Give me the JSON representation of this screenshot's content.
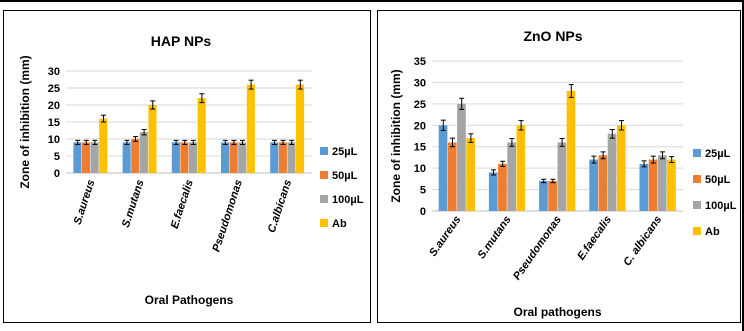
{
  "chart_data": [
    {
      "type": "bar",
      "title": "HAP NPs",
      "xlabel": "Oral Pathogens",
      "ylabel": "Zone of inhibition (mm)",
      "ylim": [
        0,
        30
      ],
      "yticks": [
        0,
        5,
        10,
        15,
        20,
        25,
        30
      ],
      "grid": true,
      "legend_position": "right",
      "categories": [
        "S.aureus",
        "S.mutans",
        "E.faecalis",
        "Pseudomonas",
        "C.albicans"
      ],
      "series": [
        {
          "name": "25µL",
          "color": "#5b9bd5",
          "values": [
            9,
            9,
            9,
            9,
            9
          ],
          "errors": [
            0.6,
            0.6,
            0.6,
            0.6,
            0.6
          ]
        },
        {
          "name": "50µL",
          "color": "#ed7d31",
          "values": [
            9,
            10,
            9,
            9,
            9
          ],
          "errors": [
            0.6,
            0.7,
            0.6,
            0.6,
            0.6
          ]
        },
        {
          "name": "100µL",
          "color": "#a5a5a5",
          "values": [
            9,
            12,
            9,
            9,
            9
          ],
          "errors": [
            0.6,
            0.8,
            0.6,
            0.6,
            0.6
          ]
        },
        {
          "name": "Ab",
          "color": "#ffc000",
          "values": [
            16,
            20,
            22,
            26,
            26
          ],
          "errors": [
            1,
            1.2,
            1.3,
            1.3,
            1.3
          ]
        }
      ]
    },
    {
      "type": "bar",
      "title": "ZnO NPs",
      "xlabel": "Oral pathogens",
      "ylabel": "Zone of inhibition (mm)",
      "ylim": [
        0,
        35
      ],
      "yticks": [
        0,
        5,
        10,
        15,
        20,
        25,
        30,
        35
      ],
      "grid": true,
      "legend_position": "right",
      "categories": [
        "S.aureus",
        "S.mutans",
        "Pseudomonas",
        "E.faecalis",
        "C. albicans"
      ],
      "series": [
        {
          "name": "25µL",
          "color": "#5b9bd5",
          "values": [
            20,
            9,
            7,
            12,
            11
          ],
          "errors": [
            1.2,
            0.6,
            0.4,
            0.8,
            0.7
          ]
        },
        {
          "name": "50µL",
          "color": "#ed7d31",
          "values": [
            16,
            11,
            7,
            13,
            12
          ],
          "errors": [
            1,
            0.6,
            0.4,
            0.8,
            0.8
          ]
        },
        {
          "name": "100µL",
          "color": "#a5a5a5",
          "values": [
            25,
            16,
            16,
            18,
            13
          ],
          "errors": [
            1.3,
            0.9,
            0.9,
            1,
            0.8
          ]
        },
        {
          "name": "Ab",
          "color": "#ffc000",
          "values": [
            17,
            20,
            28,
            20,
            12
          ],
          "errors": [
            1,
            1.1,
            1.5,
            1.1,
            0.7
          ]
        }
      ]
    }
  ]
}
